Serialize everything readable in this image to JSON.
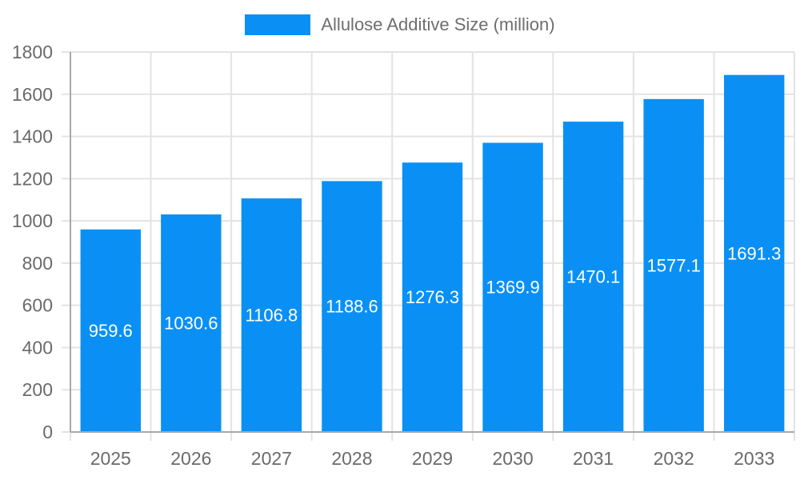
{
  "chart_data": {
    "type": "bar",
    "title": "Allulose Additive Size (million)",
    "categories": [
      "2025",
      "2026",
      "2027",
      "2028",
      "2029",
      "2030",
      "2031",
      "2032",
      "2033"
    ],
    "series": [
      {
        "name": "Allulose Additive Size (million)",
        "values": [
          959.6,
          1030.6,
          1106.8,
          1188.6,
          1276.3,
          1369.9,
          1470.1,
          1577.1,
          1691.3
        ]
      }
    ],
    "xlabel": "",
    "ylabel": "",
    "ylim": [
      0,
      1800
    ],
    "ytick_step": 200,
    "ytick_labels": [
      "0",
      "200",
      "400",
      "600",
      "800",
      "1000",
      "1200",
      "1400",
      "1600",
      "1800"
    ],
    "grid": true,
    "legend_position": "top",
    "value_labels": "inside-center",
    "colors": {
      "bar": "#0a90f5",
      "grid": "#e3e3e3",
      "axis": "#a8a8a8",
      "tick_text": "#6a6a6a",
      "legend_text": "#6e6e6e",
      "value_text": "#ffffff",
      "background": "#ffffff"
    }
  }
}
